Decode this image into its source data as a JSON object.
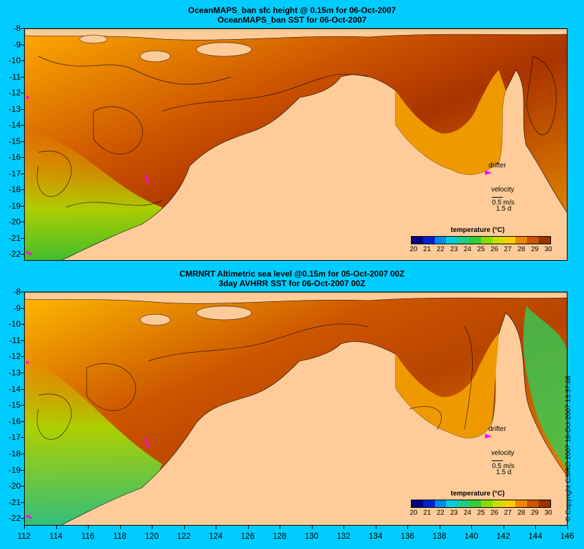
{
  "panels": [
    {
      "title_line1": "OceanMAPS_ban sfc height @ 0.15m for 06-Oct-2007",
      "title_line2": "OceanMAPS_ban SST for 06-Oct-2007"
    },
    {
      "title_line1": "CMRNRT Altimetric sea level  @0.15m  for 05-Oct-2007 00Z",
      "title_line2": "3day AVHRR SST for 06-Oct-2007 00Z"
    }
  ],
  "y_ticks": [
    "-8",
    "-9",
    "-10",
    "-11",
    "-12",
    "-13",
    "-14",
    "-15",
    "-16",
    "-17",
    "-18",
    "-19",
    "-20",
    "-21",
    "-22"
  ],
  "x_ticks": [
    "112",
    "114",
    "116",
    "118",
    "120",
    "122",
    "124",
    "126",
    "128",
    "130",
    "132",
    "134",
    "136",
    "138",
    "140",
    "142",
    "144",
    "146"
  ],
  "legend": {
    "title": "temperature (°C)",
    "labels": [
      "20",
      "21",
      "22",
      "23",
      "24",
      "25",
      "26",
      "27",
      "28",
      "29",
      "30"
    ],
    "colors": [
      "#000080",
      "#0022cc",
      "#0088ee",
      "#00ccdd",
      "#22cc88",
      "#33cc33",
      "#88dd00",
      "#ccdd00",
      "#ffcc00",
      "#ee8800",
      "#cc5500",
      "#993300"
    ]
  },
  "annotations": {
    "drifter": "drifter",
    "velocity": "velocity",
    "speed": "0.5 m/s",
    "duration": "1.5 d"
  },
  "copyright": "© Copyright CSIRO 2007   16-Oct-2007 13:37:08",
  "colors": {
    "background": "#00ccff",
    "land": "#ffcc99",
    "drifter_marker": "#ff00ff"
  }
}
